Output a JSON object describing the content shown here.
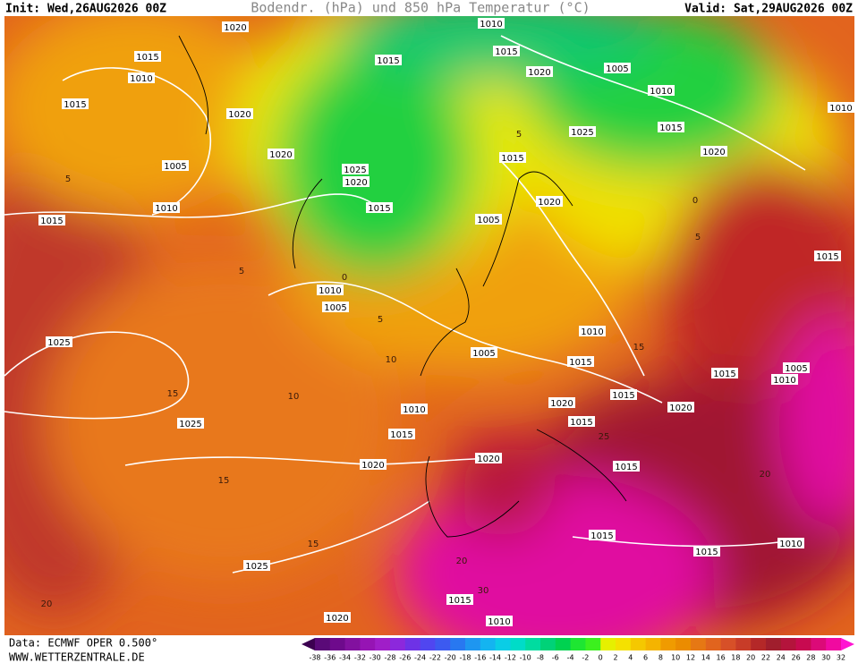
{
  "header": {
    "init": "Init: Wed,26AUG2026 00Z",
    "title": "Bodendr. (hPa) und 850 hPa Temperatur (°C)",
    "valid": "Valid: Sat,29AUG2026 00Z"
  },
  "footer": {
    "source": "Data: ECMWF OPER 0.500°",
    "website": "WWW.WETTERZENTRALE.DE"
  },
  "scale": {
    "values": [
      -38,
      -36,
      -34,
      -32,
      -30,
      -28,
      -26,
      -24,
      -22,
      -20,
      -18,
      -16,
      -14,
      -12,
      -10,
      -8,
      -6,
      -4,
      -2,
      0,
      2,
      4,
      6,
      8,
      10,
      12,
      14,
      16,
      18,
      20,
      22,
      24,
      26,
      28,
      30,
      32
    ],
    "colors": [
      "#3c0050",
      "#5a0a78",
      "#6e0a8c",
      "#82119f",
      "#9614b4",
      "#a01ec8",
      "#8c28dc",
      "#6e32e6",
      "#5046f0",
      "#3c5af0",
      "#2878f0",
      "#1e96f0",
      "#14b4f0",
      "#0acde6",
      "#00dcc8",
      "#00dca0",
      "#00d278",
      "#00d250",
      "#1ee632",
      "#3cf01e",
      "#e6f000",
      "#f5e100",
      "#f5c800",
      "#f5b400",
      "#f09b00",
      "#eb8c00",
      "#e67814",
      "#e1641e",
      "#d75028",
      "#c83c28",
      "#b42828",
      "#a01e2d",
      "#b4143c",
      "#c80a50",
      "#dc0a78",
      "#f00aa0",
      "#ff14d2"
    ]
  },
  "isobars": {
    "labels": [
      1020,
      1015,
      1010,
      1015,
      1020,
      1020,
      1005,
      1010,
      1015,
      1025,
      1020,
      1015,
      1015,
      1010,
      1015,
      1020,
      1005,
      1010,
      1015,
      1020,
      1025,
      1015,
      1020,
      1005,
      1010,
      1005,
      1025,
      1025,
      1010,
      1015,
      1020,
      1020,
      1005,
      1010,
      1015,
      1020,
      1015,
      1015,
      1015,
      1020,
      1015,
      1005,
      1010,
      1015,
      1010,
      1015,
      1015,
      1010,
      1025,
      1015,
      1020,
      1010
    ]
  },
  "isotherms": {
    "labels": [
      5,
      5,
      0,
      5,
      10,
      10,
      15,
      15,
      15,
      20,
      20,
      25,
      30,
      5,
      0,
      5,
      15,
      20
    ]
  }
}
